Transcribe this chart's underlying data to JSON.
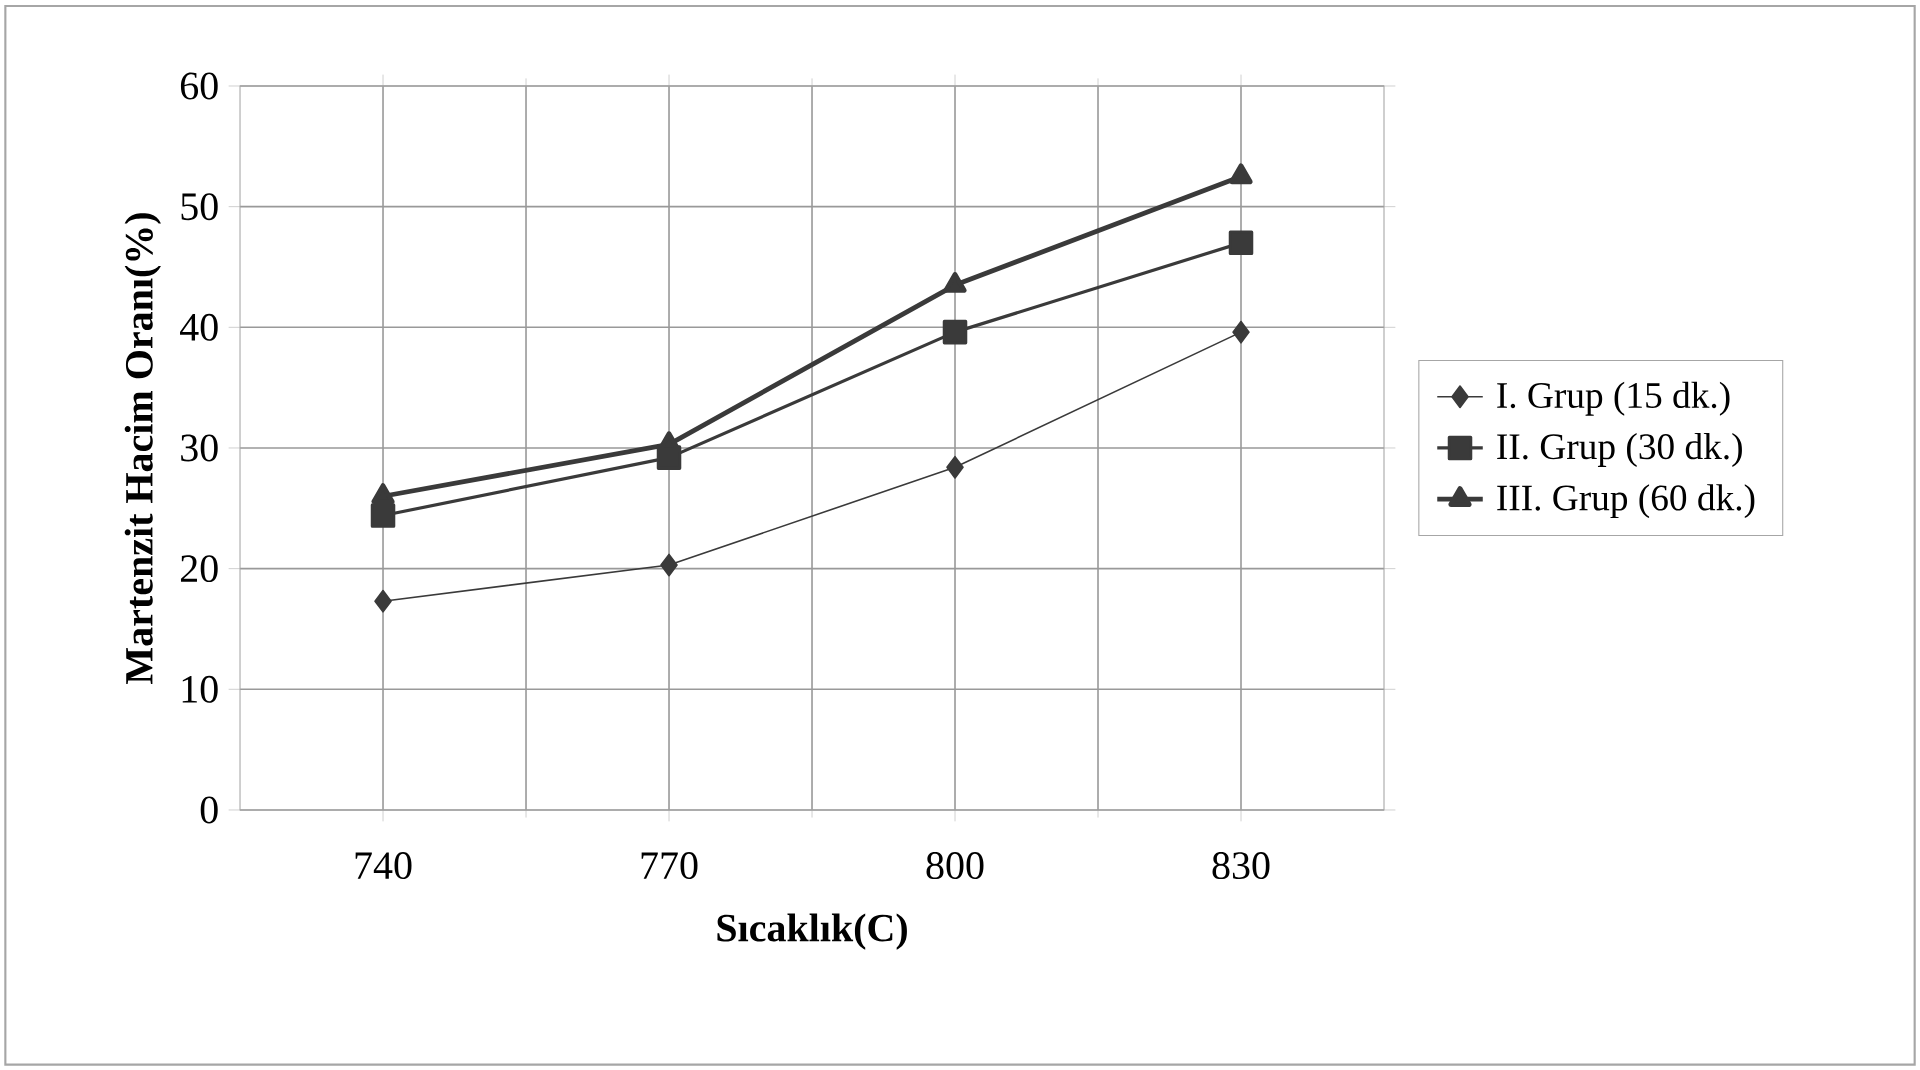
{
  "chart_data": {
    "type": "line",
    "xlabel": "Sıcaklık(C)",
    "ylabel": "Martenzit Hacim Oranı(%)",
    "categories": [
      "740",
      "770",
      "800",
      "830"
    ],
    "series": [
      {
        "name": "I. Grup (15 dk.)",
        "color": "#3a3a3a",
        "marker": "diamond",
        "values": [
          17.3,
          20.3,
          28.4,
          39.6
        ]
      },
      {
        "name": "II. Grup (30 dk.)",
        "color": "#3a3a3a",
        "marker": "square",
        "values": [
          24.4,
          29.2,
          39.6,
          47.0
        ]
      },
      {
        "name": "III. Grup (60 dk.)",
        "color": "#3a3a3a",
        "marker": "triangle",
        "values": [
          26.0,
          30.3,
          43.5,
          52.5
        ]
      }
    ],
    "ylim": [
      0,
      60
    ],
    "yticks": [
      0,
      10,
      20,
      30,
      40,
      50,
      60
    ],
    "grid": true,
    "legend": "right",
    "line_style": "solid"
  }
}
